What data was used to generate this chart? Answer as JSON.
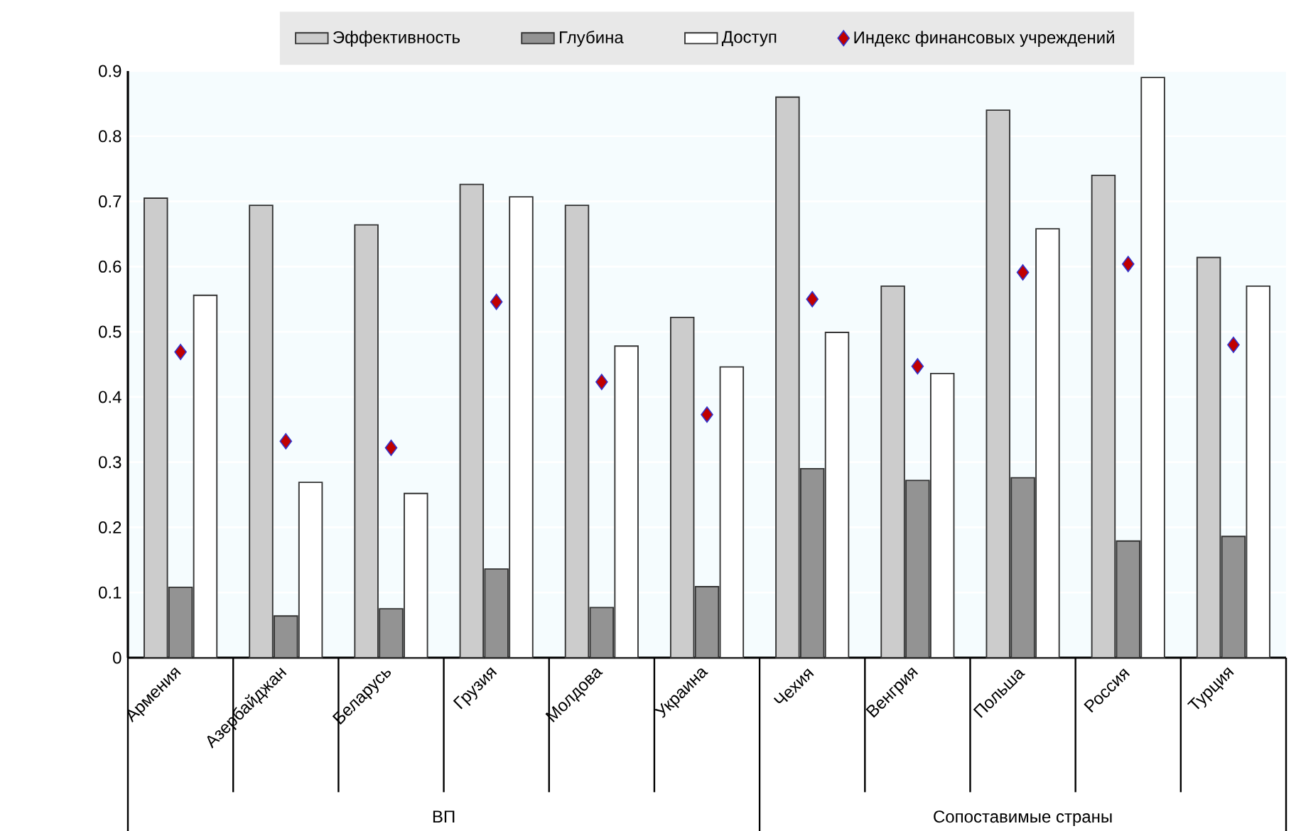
{
  "chart_data": {
    "type": "bar",
    "categories": [
      "Армения",
      "Азербайджан",
      "Беларусь",
      "Грузия",
      "Молдова",
      "Украина",
      "Чехия",
      "Венгрия",
      "Польша",
      "Россия",
      "Турция"
    ],
    "series": [
      {
        "name": "Эффективность",
        "color": "#cccccc",
        "values": [
          0.705,
          0.694,
          0.664,
          0.726,
          0.694,
          0.522,
          0.86,
          0.57,
          0.84,
          0.74,
          0.614
        ]
      },
      {
        "name": "Глубина",
        "color": "#939393",
        "values": [
          0.108,
          0.064,
          0.075,
          0.136,
          0.077,
          0.109,
          0.29,
          0.272,
          0.276,
          0.179,
          0.186
        ]
      },
      {
        "name": "Доступ",
        "color": "#ffffff",
        "values": [
          0.556,
          0.269,
          0.252,
          0.707,
          0.478,
          0.446,
          0.499,
          0.436,
          0.658,
          0.89,
          0.57
        ]
      },
      {
        "name": "Индекс финансовых учреждений",
        "type": "scatter",
        "color": "#c00000",
        "values": [
          0.469,
          0.332,
          0.322,
          0.546,
          0.423,
          0.373,
          0.55,
          0.447,
          0.591,
          0.604,
          0.48
        ]
      }
    ],
    "marker": "diamond",
    "ylim": [
      0,
      0.9
    ],
    "yticks": [
      0,
      0.1,
      0.2,
      0.3,
      0.4,
      0.5,
      0.6,
      0.7,
      0.8,
      0.9
    ],
    "grid": "y",
    "legend": "top",
    "annotations": [
      "ВП",
      "Сопоставимые страны"
    ]
  }
}
